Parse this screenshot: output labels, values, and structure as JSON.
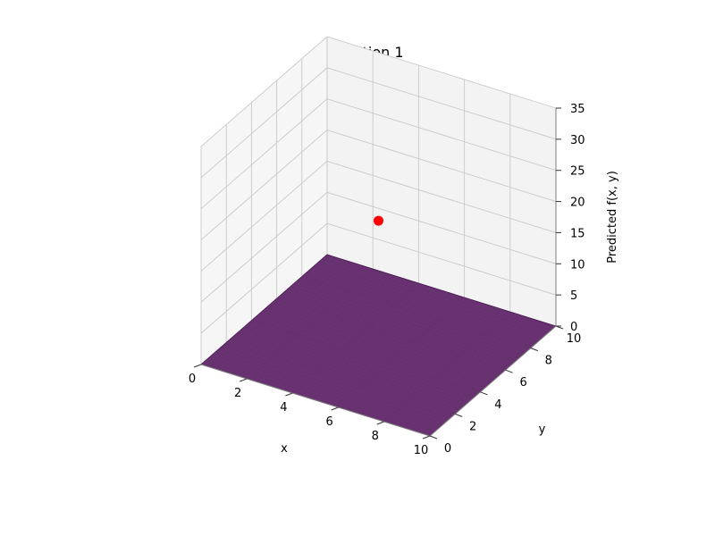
{
  "chart_data": {
    "type": "surface3d",
    "title": "Iteration 1",
    "xlabel": "x",
    "ylabel": "y",
    "zlabel": "Predicted f(x, y)",
    "xlim": [
      0,
      10
    ],
    "ylim": [
      0,
      10
    ],
    "zlim": [
      0,
      35
    ],
    "x_ticks": [
      "0",
      "2",
      "4",
      "6",
      "8",
      "10"
    ],
    "y_ticks": [
      "0",
      "2",
      "4",
      "6",
      "8",
      "10"
    ],
    "z_ticks": [
      "0",
      "5",
      "10",
      "15",
      "20",
      "25",
      "30",
      "35"
    ],
    "surface": {
      "x_range": [
        0,
        10
      ],
      "y_range": [
        0,
        10
      ],
      "z_value": 0,
      "color": "#5a1f63"
    },
    "points": [
      {
        "x": 5,
        "y": 5,
        "z": 20,
        "color": "#ff0000"
      }
    ],
    "grid": true
  }
}
